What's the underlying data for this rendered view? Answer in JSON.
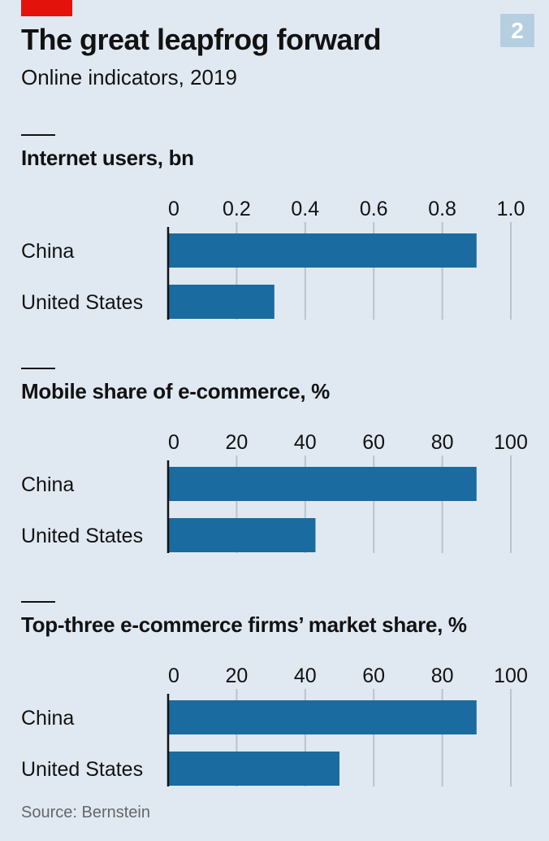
{
  "badge": "2",
  "title": "The great leapfrog forward",
  "subtitle": "Online indicators, 2019",
  "source": "Source: Bernstein",
  "colors": {
    "bar": "#1a6ba0",
    "grid": "#b7c4cf",
    "background": "#e0e9f2",
    "accent": "#e3120b",
    "badge": "#b4cfe0"
  },
  "chart_data": [
    {
      "type": "bar",
      "orientation": "horizontal",
      "title": "Internet users, bn",
      "categories": [
        "China",
        "United States"
      ],
      "values": [
        0.9,
        0.31
      ],
      "xlim": [
        0,
        1.0
      ],
      "ticks": [
        0,
        0.2,
        0.4,
        0.6,
        0.8,
        1.0
      ],
      "tick_labels": [
        "0",
        "0.2",
        "0.4",
        "0.6",
        "0.8",
        "1.0"
      ],
      "grid": true
    },
    {
      "type": "bar",
      "orientation": "horizontal",
      "title": "Mobile share of e-commerce, %",
      "categories": [
        "China",
        "United States"
      ],
      "values": [
        90,
        43
      ],
      "xlim": [
        0,
        100
      ],
      "ticks": [
        0,
        20,
        40,
        60,
        80,
        100
      ],
      "tick_labels": [
        "0",
        "20",
        "40",
        "60",
        "80",
        "100"
      ],
      "grid": true
    },
    {
      "type": "bar",
      "orientation": "horizontal",
      "title": "Top-three e-commerce firms’ market share, %",
      "categories": [
        "China",
        "United States"
      ],
      "values": [
        90,
        50
      ],
      "xlim": [
        0,
        100
      ],
      "ticks": [
        0,
        20,
        40,
        60,
        80,
        100
      ],
      "tick_labels": [
        "0",
        "20",
        "40",
        "60",
        "80",
        "100"
      ],
      "grid": true
    }
  ]
}
